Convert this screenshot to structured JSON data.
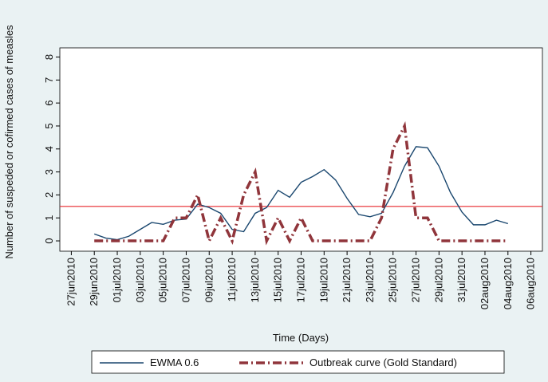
{
  "chart_data": {
    "type": "line",
    "x_label": "Time (Days)",
    "y_label": "Number of suspeded or cofirmed cases of measles",
    "x": [
      "2010-06-29",
      "2010-06-30",
      "2010-07-01",
      "2010-07-02",
      "2010-07-03",
      "2010-07-04",
      "2010-07-05",
      "2010-07-06",
      "2010-07-07",
      "2010-07-08",
      "2010-07-09",
      "2010-07-10",
      "2010-07-11",
      "2010-07-12",
      "2010-07-13",
      "2010-07-14",
      "2010-07-15",
      "2010-07-16",
      "2010-07-17",
      "2010-07-18",
      "2010-07-19",
      "2010-07-20",
      "2010-07-21",
      "2010-07-22",
      "2010-07-23",
      "2010-07-24",
      "2010-07-25",
      "2010-07-26",
      "2010-07-27",
      "2010-07-28",
      "2010-07-29",
      "2010-07-30",
      "2010-07-31",
      "2010-08-01",
      "2010-08-02",
      "2010-08-03",
      "2010-08-04"
    ],
    "series": [
      {
        "name": "EWMA 0.6",
        "color": "#1a476f",
        "style": "solid",
        "values": [
          0.3,
          0.12,
          0.05,
          0.2,
          0.5,
          0.8,
          0.72,
          0.9,
          0.95,
          1.6,
          1.45,
          1.2,
          0.5,
          0.4,
          1.2,
          1.45,
          2.2,
          1.9,
          2.55,
          2.8,
          3.1,
          2.65,
          1.85,
          1.15,
          1.05,
          1.2,
          2.1,
          3.25,
          4.1,
          4.05,
          3.25,
          2.1,
          1.25,
          0.7,
          0.7,
          0.9,
          0.75
        ]
      },
      {
        "name": "Outbreak curve (Gold Standard)",
        "color": "#90353b",
        "style": "dashdot",
        "values": [
          0,
          0,
          0,
          0,
          0,
          0,
          0,
          1,
          1,
          2,
          0,
          1,
          0,
          2,
          3,
          0,
          1,
          0,
          1,
          0,
          0,
          0,
          0,
          0,
          0,
          1,
          4,
          5,
          1,
          1,
          0,
          0,
          0,
          0,
          0,
          0,
          0
        ]
      }
    ],
    "reference_line": {
      "value": 1.5,
      "color": "#e8262c"
    },
    "xlim": [
      "2010-06-26",
      "2010-08-07"
    ],
    "xticks": [
      {
        "value": "2010-06-27",
        "label": "27jun2010"
      },
      {
        "value": "2010-06-29",
        "label": "29jun2010"
      },
      {
        "value": "2010-07-01",
        "label": "01jul2010"
      },
      {
        "value": "2010-07-03",
        "label": "03jul2010"
      },
      {
        "value": "2010-07-05",
        "label": "05jul2010"
      },
      {
        "value": "2010-07-07",
        "label": "07jul2010"
      },
      {
        "value": "2010-07-09",
        "label": "09jul2010"
      },
      {
        "value": "2010-07-11",
        "label": "11jul2010"
      },
      {
        "value": "2010-07-13",
        "label": "13jul2010"
      },
      {
        "value": "2010-07-15",
        "label": "15jul2010"
      },
      {
        "value": "2010-07-17",
        "label": "17jul2010"
      },
      {
        "value": "2010-07-19",
        "label": "19jul2010"
      },
      {
        "value": "2010-07-21",
        "label": "21jul2010"
      },
      {
        "value": "2010-07-23",
        "label": "23jul2010"
      },
      {
        "value": "2010-07-25",
        "label": "25jul2010"
      },
      {
        "value": "2010-07-27",
        "label": "27jul2010"
      },
      {
        "value": "2010-07-29",
        "label": "29jul2010"
      },
      {
        "value": "2010-07-31",
        "label": "31jul2010"
      },
      {
        "value": "2010-08-02",
        "label": "02aug2010"
      },
      {
        "value": "2010-08-04",
        "label": "04aug2010"
      },
      {
        "value": "2010-08-06",
        "label": "06aug2010"
      }
    ],
    "ylim": [
      -0.45,
      8.4
    ],
    "yticks": [
      0,
      1,
      2,
      3,
      4,
      5,
      6,
      7,
      8
    ],
    "grid": false
  }
}
